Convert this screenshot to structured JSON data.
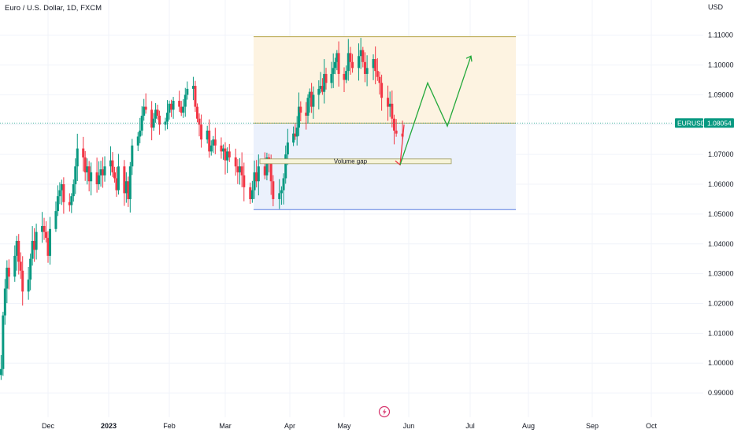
{
  "header": {
    "symbol_title": "Euro / U.S. Dollar, 1D, FXCM",
    "currency": "USD"
  },
  "chart_data": {
    "type": "candlestick",
    "title": "Euro / U.S. Dollar, 1D, FXCM",
    "ylabel": "USD",
    "ylim": [
      0.985,
      1.116
    ],
    "grid": true,
    "y_ticks": [
      "1.11000",
      "1.10000",
      "1.09000",
      "1.08000",
      "1.07000",
      "1.06000",
      "1.05000",
      "1.04000",
      "1.03000",
      "1.02000",
      "1.01000",
      "1.00000",
      "0.99000"
    ],
    "x_ticks": [
      {
        "label": "Dec",
        "bold": false
      },
      {
        "label": "2023",
        "bold": true
      },
      {
        "label": "Feb",
        "bold": false
      },
      {
        "label": "Mar",
        "bold": false
      },
      {
        "label": "Apr",
        "bold": false
      },
      {
        "label": "May",
        "bold": false
      },
      {
        "label": "Jun",
        "bold": false
      },
      {
        "label": "Jul",
        "bold": false
      },
      {
        "label": "Aug",
        "bold": false
      },
      {
        "label": "Sep",
        "bold": false
      },
      {
        "label": "Oct",
        "bold": false
      }
    ],
    "x_tick_dates": [
      "2022-12-01",
      "2023-01-01",
      "2023-02-01",
      "2023-03-01",
      "2023-04-01",
      "2023-05-01",
      "2023-06-01",
      "2023-07-01",
      "2023-08-01",
      "2023-09-01",
      "2023-10-01"
    ],
    "up_color": "#089981",
    "down_color": "#f23645",
    "closes": [
      0.998,
      1.016,
      1.025,
      1.032,
      1.029,
      1.036,
      1.041,
      1.034,
      1.031,
      1.024,
      1.028,
      1.035,
      1.041,
      1.038,
      1.044,
      1.046,
      1.044,
      1.042,
      1.036,
      1.045,
      1.051,
      1.056,
      1.058,
      1.06,
      1.054,
      1.053,
      1.056,
      1.06,
      1.066,
      1.072,
      1.069,
      1.064,
      1.066,
      1.061,
      1.064,
      1.06,
      1.063,
      1.065,
      1.063,
      1.066,
      1.068,
      1.064,
      1.062,
      1.058,
      1.066,
      1.057,
      1.061,
      1.055,
      1.066,
      1.073,
      1.076,
      1.078,
      1.083,
      1.086,
      1.085,
      1.079,
      1.082,
      1.085,
      1.083,
      1.08,
      1.081,
      1.084,
      1.087,
      1.085,
      1.088,
      1.086,
      1.084,
      1.086,
      1.09,
      1.092,
      1.093,
      1.086,
      1.082,
      1.08,
      1.075,
      1.078,
      1.071,
      1.073,
      1.075,
      1.073,
      1.071,
      1.072,
      1.068,
      1.071,
      1.069,
      1.066,
      1.064,
      1.066,
      1.063,
      1.059,
      1.055,
      1.058,
      1.064,
      1.061,
      1.066,
      1.063,
      1.069,
      1.067,
      1.061,
      1.055,
      1.057,
      1.058,
      1.062,
      1.07,
      1.074,
      1.077,
      1.076,
      1.079,
      1.086,
      1.084,
      1.083,
      1.089,
      1.091,
      1.086,
      1.09,
      1.092,
      1.093,
      1.091,
      1.097,
      1.094,
      1.097,
      1.099,
      1.101,
      1.104,
      1.097,
      1.095,
      1.098,
      1.104,
      1.101,
      1.099,
      1.103,
      1.105,
      1.101,
      1.097,
      1.099,
      1.102,
      1.098,
      1.096,
      1.094,
      1.089,
      1.086,
      1.087,
      1.082,
      1.078,
      1.077,
      1.076
    ],
    "open": 0.996,
    "last_price": "1.08054",
    "price_label": "EURUSD",
    "annotations": {
      "upper_box": {
        "top": 1.1095,
        "bottom": 1.0805,
        "fill": "#fdf3e1",
        "edge": "#b7a54a"
      },
      "lower_box": {
        "top": 1.0805,
        "bottom": 1.0515,
        "fill": "#ebf1fc",
        "edge": "#5b7fe0"
      },
      "volume_gap": {
        "text": "Volume gap",
        "top": 1.0685,
        "bottom": 1.0675,
        "fill": "#f7f4d9"
      },
      "arrow_down_color": "#f23645",
      "arrow_up_color": "#22a83a",
      "projected_path": [
        1.08,
        1.0665,
        1.094,
        1.0795,
        1.103
      ]
    }
  },
  "footer": {
    "lightning_icon": "lightning-icon"
  }
}
